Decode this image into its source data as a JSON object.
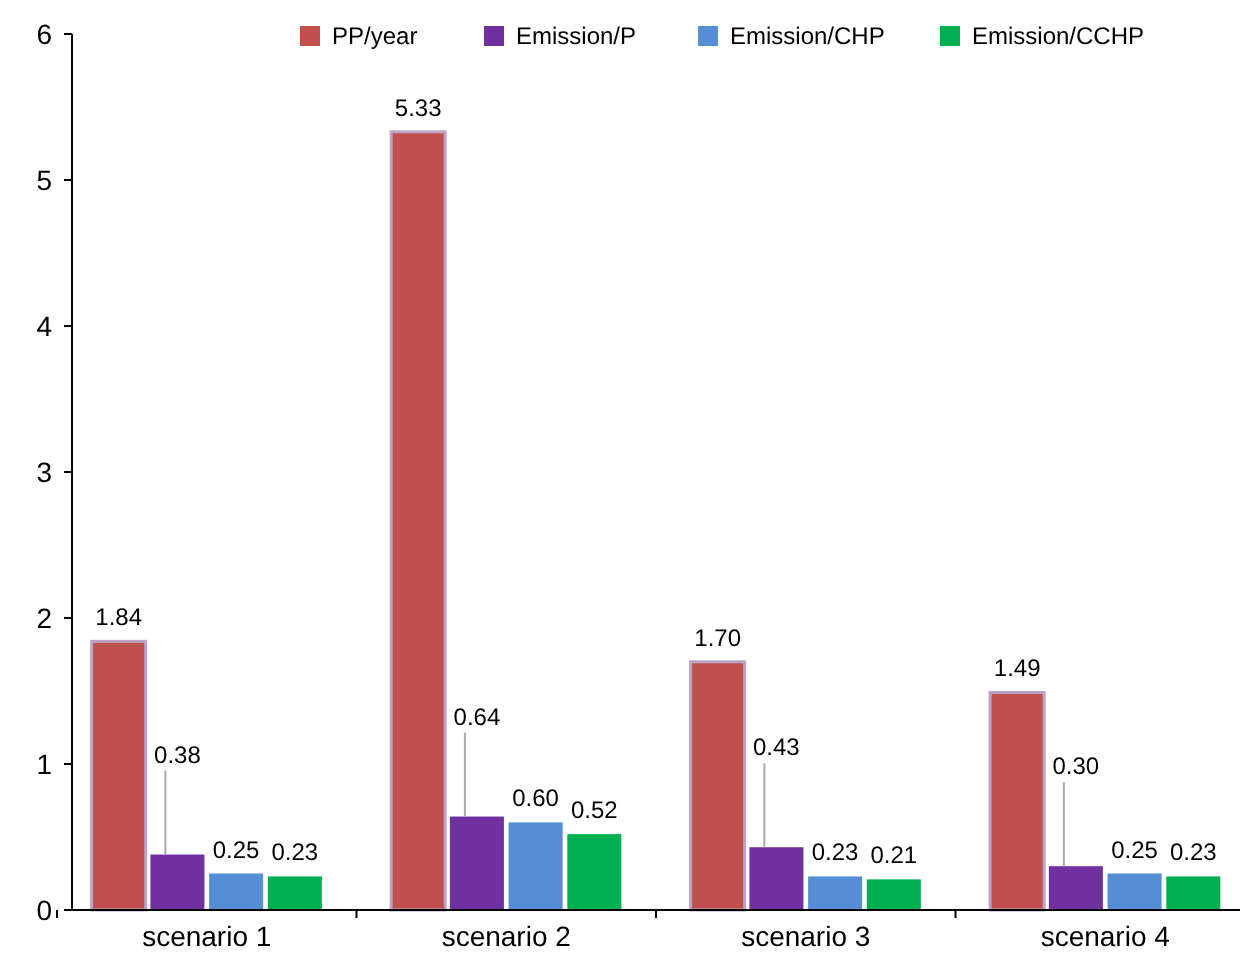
{
  "chart_data": {
    "type": "bar",
    "categories": [
      "scenario 1",
      "scenario 2",
      "scenario 3",
      "scenario 4"
    ],
    "series": [
      {
        "name": "PP/year",
        "color": "#c0504d",
        "values": [
          1.84,
          5.33,
          1.7,
          1.49
        ]
      },
      {
        "name": "Emission/P",
        "color": "#7030a0",
        "values": [
          0.38,
          0.64,
          0.43,
          0.3
        ]
      },
      {
        "name": "Emission/CHP",
        "color": "#558ed5",
        "values": [
          0.25,
          0.6,
          0.23,
          0.25
        ]
      },
      {
        "name": "Emission/CCHP",
        "color": "#00b050",
        "values": [
          0.23,
          0.52,
          0.21,
          0.23
        ]
      }
    ],
    "value_labels": [
      [
        "1.84",
        "5.33",
        "1.70",
        "1.49"
      ],
      [
        "0.38",
        "0.64",
        "0.43",
        "0.30"
      ],
      [
        "0.25",
        "0.60",
        "0.23",
        "0.25"
      ],
      [
        "0.23",
        "0.52",
        "0.21",
        "0.23"
      ]
    ],
    "ylim": [
      0,
      6
    ],
    "yticks": [
      0,
      1,
      2,
      3,
      4,
      5,
      6
    ],
    "grid": false,
    "legend": "top"
  }
}
